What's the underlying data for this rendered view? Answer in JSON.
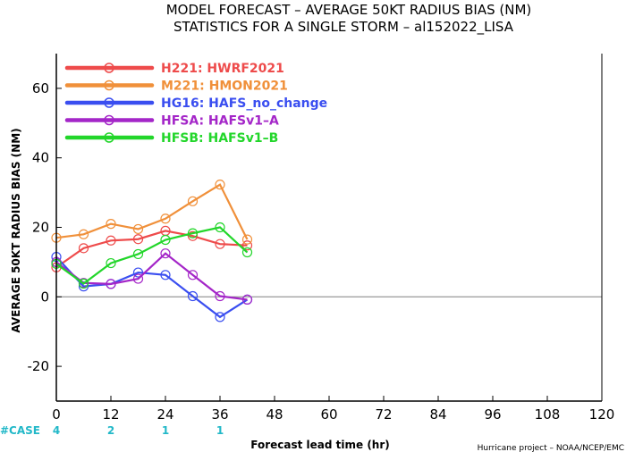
{
  "title_line1": "MODEL FORECAST – AVERAGE 50KT RADIUS BIAS (NM)",
  "title_line2": "STATISTICS FOR A SINGLE STORM – al152022_LISA",
  "xlabel": "Forecast lead time (hr)",
  "ylabel": "AVERAGE 50KT RADIUS BIAS (NM)",
  "credit": "Hurricane project – NOAA/NCEP/EMC",
  "case_label": "#CASE",
  "case_counts": [
    {
      "x": 0,
      "label": "4"
    },
    {
      "x": 12,
      "label": "2"
    },
    {
      "x": 24,
      "label": "1"
    },
    {
      "x": 36,
      "label": "1"
    }
  ],
  "colors": {
    "axis": "#000000",
    "zero_line": "#808080",
    "case": "#22b8c8"
  },
  "chart_data": {
    "type": "line",
    "xlim": [
      0,
      120
    ],
    "ylim": [
      -30,
      70
    ],
    "xticks": [
      0,
      12,
      24,
      36,
      48,
      60,
      72,
      84,
      96,
      108,
      120
    ],
    "yticks": [
      -20,
      0,
      20,
      40,
      60
    ],
    "legend_position": "top-left",
    "series": [
      {
        "name": "H221:  HWRF2021",
        "color": "#ee4b4b",
        "x": [
          0,
          6,
          12,
          18,
          24,
          30,
          36,
          42
        ],
        "y": [
          8.5,
          14,
          16.2,
          16.6,
          19,
          17.5,
          15.2,
          14.8
        ]
      },
      {
        "name": "M221:  HMON2021",
        "color": "#f0903a",
        "x": [
          0,
          6,
          12,
          18,
          24,
          30,
          36,
          42
        ],
        "y": [
          17,
          18,
          21,
          19.5,
          22.5,
          27.5,
          32.3,
          16.5
        ]
      },
      {
        "name": "HG16:  HAFS_no_change",
        "color": "#3a4ef0",
        "x": [
          0,
          6,
          12,
          18,
          24,
          30,
          36,
          42
        ],
        "y": [
          11.5,
          3,
          3.7,
          7,
          6.3,
          0.2,
          -5.8,
          -0.8
        ]
      },
      {
        "name": "HFSA:  HAFSv1–A",
        "color": "#a426c8",
        "x": [
          0,
          6,
          12,
          18,
          24,
          30,
          36,
          42
        ],
        "y": [
          10,
          4,
          3.7,
          5.2,
          12.5,
          6.3,
          0.2,
          -0.8
        ]
      },
      {
        "name": "HFSB:  HAFSv1–B",
        "color": "#22d62a",
        "x": [
          0,
          6,
          12,
          18,
          24,
          30,
          36,
          42
        ],
        "y": [
          9.5,
          3.8,
          9.7,
          12.3,
          16.4,
          18.3,
          20,
          12.8
        ]
      }
    ]
  }
}
